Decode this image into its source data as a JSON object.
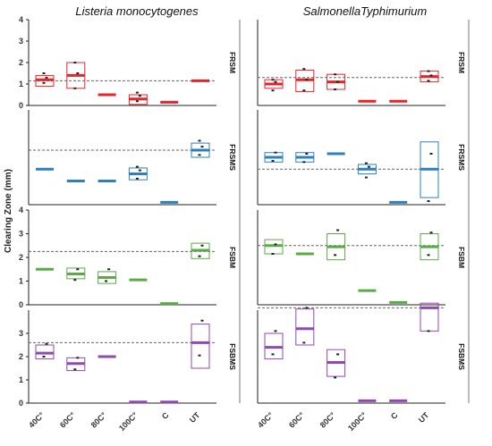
{
  "chart_data": {
    "type": "boxplot",
    "y_axis_label": "Clearing Zone (mm)",
    "categories": [
      "40C°",
      "60C°",
      "80C°",
      "100C°",
      "C",
      "UT"
    ],
    "panel_columns": [
      "Listeria monocytogenes",
      "SalmonellaTyphimurium"
    ],
    "rows": [
      {
        "label": "FRSM",
        "color": "#e8242b",
        "ylim": [
          0,
          4
        ],
        "ticks": [
          0,
          1,
          2,
          3,
          4
        ]
      },
      {
        "label": "FRSMS",
        "color": "#2f7fbf",
        "ylim": [
          0,
          4
        ],
        "ticks": []
      },
      {
        "label": "FSBM",
        "color": "#5aab45",
        "ylim": [
          0,
          4
        ],
        "ticks": [
          0,
          1,
          2,
          3,
          4
        ]
      },
      {
        "label": "FSBMS",
        "color": "#8e4ab0",
        "ylim": [
          0,
          4
        ],
        "ticks": [
          0,
          1,
          2,
          3
        ]
      }
    ],
    "panels": [
      {
        "row": 0,
        "col": 0,
        "reference": 1.15,
        "boxes": [
          {
            "q1": 0.9,
            "median": 1.2,
            "q3": 1.4,
            "points": [
              1.05,
              1.3,
              1.5
            ]
          },
          {
            "q1": 0.8,
            "median": 1.4,
            "q3": 2.0,
            "points": [
              0.8,
              1.5,
              2.0
            ]
          },
          {
            "q1": 0.5,
            "median": 0.5,
            "q3": 0.5,
            "points": []
          },
          {
            "q1": 0.05,
            "median": 0.3,
            "q3": 0.5,
            "points": [
              0.2,
              0.45,
              0.6
            ]
          },
          {
            "q1": 0.15,
            "median": 0.15,
            "q3": 0.15,
            "points": []
          },
          {
            "q1": 1.15,
            "median": 1.15,
            "q3": 1.15,
            "points": []
          }
        ]
      },
      {
        "row": 0,
        "col": 1,
        "reference": 1.3,
        "boxes": [
          {
            "q1": 0.8,
            "median": 1.0,
            "q3": 1.2,
            "points": [
              0.7,
              1.1,
              1.2
            ]
          },
          {
            "q1": 0.65,
            "median": 1.2,
            "q3": 1.65,
            "points": [
              0.7,
              1.2,
              1.7
            ]
          },
          {
            "q1": 0.75,
            "median": 1.1,
            "q3": 1.45,
            "points": [
              0.75,
              1.1,
              1.45
            ]
          },
          {
            "q1": 0.2,
            "median": 0.2,
            "q3": 0.2,
            "points": []
          },
          {
            "q1": 0.2,
            "median": 0.2,
            "q3": 0.2,
            "points": []
          },
          {
            "q1": 1.1,
            "median": 1.35,
            "q3": 1.6,
            "points": [
              1.15,
              1.4,
              1.6
            ]
          }
        ]
      },
      {
        "row": 1,
        "col": 0,
        "reference": 2.3,
        "boxes": [
          {
            "q1": 1.5,
            "median": 1.5,
            "q3": 1.5,
            "points": []
          },
          {
            "q1": 1.0,
            "median": 1.0,
            "q3": 1.0,
            "points": []
          },
          {
            "q1": 1.0,
            "median": 1.0,
            "q3": 1.0,
            "points": []
          },
          {
            "q1": 1.05,
            "median": 1.3,
            "q3": 1.55,
            "points": [
              1.1,
              1.45,
              1.6
            ]
          },
          {
            "q1": 0.1,
            "median": 0.1,
            "q3": 0.1,
            "points": []
          },
          {
            "q1": 2.0,
            "median": 2.3,
            "q3": 2.6,
            "points": [
              2.1,
              2.45,
              2.7
            ]
          }
        ]
      },
      {
        "row": 1,
        "col": 1,
        "reference": 1.5,
        "boxes": [
          {
            "q1": 1.8,
            "median": 2.0,
            "q3": 2.2,
            "points": [
              1.85,
              2.2
            ]
          },
          {
            "q1": 1.8,
            "median": 2.0,
            "q3": 2.2,
            "points": [
              1.8,
              2.15
            ]
          },
          {
            "q1": 2.15,
            "median": 2.15,
            "q3": 2.15,
            "points": []
          },
          {
            "q1": 1.3,
            "median": 1.5,
            "q3": 1.7,
            "points": [
              1.15,
              1.6,
              1.75
            ]
          },
          {
            "q1": 0.1,
            "median": 0.1,
            "q3": 0.1,
            "points": []
          },
          {
            "q1": 0.3,
            "median": 1.5,
            "q3": 2.65,
            "points": [
              0.15,
              2.15
            ]
          }
        ]
      },
      {
        "row": 2,
        "col": 0,
        "reference": 2.25,
        "boxes": [
          {
            "q1": 1.5,
            "median": 1.5,
            "q3": 1.5,
            "points": []
          },
          {
            "q1": 1.1,
            "median": 1.3,
            "q3": 1.55,
            "points": [
              1.05,
              1.5
            ]
          },
          {
            "q1": 0.9,
            "median": 1.15,
            "q3": 1.4,
            "points": [
              1.0,
              1.5
            ]
          },
          {
            "q1": 1.05,
            "median": 1.05,
            "q3": 1.05,
            "points": []
          },
          {
            "q1": 0.05,
            "median": 0.05,
            "q3": 0.05,
            "points": []
          },
          {
            "q1": 1.95,
            "median": 2.3,
            "q3": 2.6,
            "points": [
              2.05,
              2.5
            ]
          }
        ]
      },
      {
        "row": 2,
        "col": 1,
        "reference": 2.5,
        "boxes": [
          {
            "q1": 2.15,
            "median": 2.5,
            "q3": 2.75,
            "points": [
              2.15,
              2.55
            ]
          },
          {
            "q1": 2.15,
            "median": 2.15,
            "q3": 2.15,
            "points": []
          },
          {
            "q1": 1.9,
            "median": 2.45,
            "q3": 3.0,
            "points": [
              2.1,
              3.15
            ]
          },
          {
            "q1": 0.6,
            "median": 0.6,
            "q3": 0.6,
            "points": []
          },
          {
            "q1": 0.1,
            "median": 0.1,
            "q3": 0.1,
            "points": []
          },
          {
            "q1": 1.9,
            "median": 2.45,
            "q3": 3.0,
            "points": [
              2.1,
              3.05
            ]
          }
        ]
      },
      {
        "row": 3,
        "col": 0,
        "reference": 2.6,
        "boxes": [
          {
            "q1": 1.9,
            "median": 2.15,
            "q3": 2.5,
            "points": [
              2.0,
              2.55
            ]
          },
          {
            "q1": 1.4,
            "median": 1.7,
            "q3": 1.95,
            "points": [
              1.45,
              1.95
            ]
          },
          {
            "q1": 2.0,
            "median": 2.0,
            "q3": 2.0,
            "points": []
          },
          {
            "q1": 0.05,
            "median": 0.05,
            "q3": 0.05,
            "points": []
          },
          {
            "q1": 0.05,
            "median": 0.05,
            "q3": 0.05,
            "points": []
          },
          {
            "q1": 1.5,
            "median": 2.6,
            "q3": 3.4,
            "points": [
              2.05,
              3.55
            ]
          }
        ]
      },
      {
        "row": 3,
        "col": 1,
        "reference": 4.1,
        "boxes": [
          {
            "q1": 1.9,
            "median": 2.4,
            "q3": 3.0,
            "points": [
              2.1,
              3.1
            ]
          },
          {
            "q1": 2.5,
            "median": 3.2,
            "q3": 4.05,
            "points": [
              2.6,
              4.1
            ]
          },
          {
            "q1": 1.15,
            "median": 1.75,
            "q3": 2.3,
            "points": [
              1.1,
              2.1
            ]
          },
          {
            "q1": 0.1,
            "median": 0.1,
            "q3": 0.1,
            "points": []
          },
          {
            "q1": 0.1,
            "median": 0.1,
            "q3": 0.1,
            "points": []
          },
          {
            "q1": 3.1,
            "median": 4.1,
            "q3": 4.3,
            "points": [
              3.1
            ]
          }
        ]
      }
    ]
  }
}
